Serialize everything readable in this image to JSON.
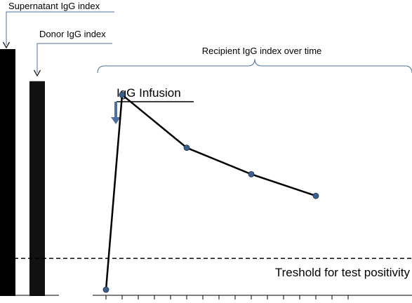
{
  "labels": {
    "supernatant": "Supernatant IgG index",
    "donor": "Donor IgG index",
    "recipient": "Recipient IgG index over time",
    "infusion": "IgG Infusion",
    "threshold": "Treshold for test positivity"
  },
  "colors": {
    "bar": "#000000",
    "line": "#000000",
    "callout": "#4f6f9f",
    "marker": "#3d5f8e",
    "arrow": "#4f6f9f"
  },
  "chart_data": {
    "type": "line",
    "title": "",
    "bars": [
      {
        "label": "Supernatant IgG index",
        "relative_height": 1.0
      },
      {
        "label": "Donor IgG index",
        "relative_height": 0.87
      }
    ],
    "series": [
      {
        "name": "Recipient IgG index over time",
        "x": [
          0,
          1,
          5,
          9,
          13
        ],
        "y": [
          0.0,
          0.81,
          0.59,
          0.48,
          0.39
        ]
      }
    ],
    "threshold": {
      "label": "Treshold for test positivity",
      "y": 0.13
    },
    "infusion_tick": 1,
    "tick_count": 16
  }
}
